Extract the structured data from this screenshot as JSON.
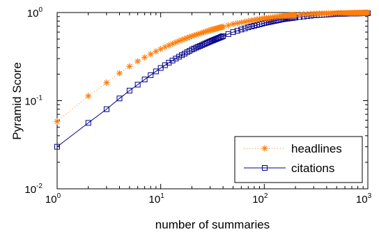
{
  "chart_data": {
    "type": "line",
    "xlabel": "number of summaries",
    "ylabel": "Pyramid Score",
    "x_scale": "log",
    "y_scale": "log",
    "xlim": [
      1,
      1000
    ],
    "ylim": [
      0.01,
      1
    ],
    "x_ticks": [
      {
        "base": "10",
        "exp": "0",
        "value": 1
      },
      {
        "base": "10",
        "exp": "1",
        "value": 10
      },
      {
        "base": "10",
        "exp": "2",
        "value": 100
      },
      {
        "base": "10",
        "exp": "3",
        "value": 1000
      }
    ],
    "y_ticks": [
      {
        "base": "10",
        "exp": "-2",
        "value": 0.01
      },
      {
        "base": "10",
        "exp": "-1",
        "value": 0.1
      },
      {
        "base": "10",
        "exp": "0",
        "value": 1
      }
    ],
    "grid": false,
    "legend_position": "bottom-right",
    "series": [
      {
        "name": "headlines",
        "color": "#ff7f0e",
        "line_style": "dotted",
        "marker": "asterisk",
        "points": [
          [
            1,
            0.058
          ],
          [
            2,
            0.113
          ],
          [
            3,
            0.16
          ],
          [
            4,
            0.205
          ],
          [
            5,
            0.245
          ],
          [
            6,
            0.28
          ],
          [
            7,
            0.31
          ],
          [
            8,
            0.337
          ],
          [
            9,
            0.362
          ],
          [
            10,
            0.385
          ],
          [
            12,
            0.425
          ],
          [
            15,
            0.475
          ],
          [
            20,
            0.54
          ],
          [
            30,
            0.63
          ],
          [
            50,
            0.74
          ],
          [
            70,
            0.8
          ],
          [
            100,
            0.86
          ],
          [
            150,
            0.91
          ],
          [
            200,
            0.94
          ],
          [
            300,
            0.97
          ],
          [
            500,
            0.985
          ],
          [
            1000,
            0.995
          ]
        ]
      },
      {
        "name": "citations",
        "color": "#00008b",
        "line_style": "solid",
        "marker": "square",
        "points": [
          [
            1,
            0.03
          ],
          [
            2,
            0.056
          ],
          [
            3,
            0.08
          ],
          [
            4,
            0.106
          ],
          [
            5,
            0.13
          ],
          [
            6,
            0.152
          ],
          [
            7,
            0.174
          ],
          [
            8,
            0.195
          ],
          [
            9,
            0.215
          ],
          [
            10,
            0.235
          ],
          [
            12,
            0.27
          ],
          [
            15,
            0.315
          ],
          [
            20,
            0.38
          ],
          [
            30,
            0.47
          ],
          [
            50,
            0.6
          ],
          [
            70,
            0.68
          ],
          [
            100,
            0.76
          ],
          [
            150,
            0.84
          ],
          [
            200,
            0.88
          ],
          [
            300,
            0.93
          ],
          [
            500,
            0.965
          ],
          [
            1000,
            0.985
          ]
        ]
      }
    ]
  }
}
